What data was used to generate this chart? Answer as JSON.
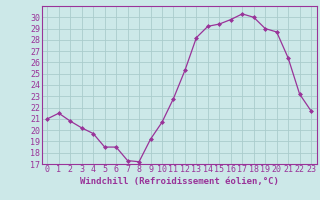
{
  "x": [
    0,
    1,
    2,
    3,
    4,
    5,
    6,
    7,
    8,
    9,
    10,
    11,
    12,
    13,
    14,
    15,
    16,
    17,
    18,
    19,
    20,
    21,
    22,
    23
  ],
  "y": [
    21.0,
    21.5,
    20.8,
    20.2,
    19.7,
    18.5,
    18.5,
    17.3,
    17.2,
    19.2,
    20.7,
    22.8,
    25.3,
    28.2,
    29.2,
    29.4,
    29.8,
    30.3,
    30.0,
    29.0,
    28.7,
    26.4,
    23.2,
    21.7
  ],
  "line_color": "#993399",
  "marker": "D",
  "marker_size": 2,
  "bg_color": "#cce8e8",
  "grid_color": "#aacccc",
  "xlabel": "Windchill (Refroidissement éolien,°C)",
  "xlim": [
    -0.5,
    23.5
  ],
  "ylim": [
    17,
    31
  ],
  "yticks": [
    17,
    18,
    19,
    20,
    21,
    22,
    23,
    24,
    25,
    26,
    27,
    28,
    29,
    30
  ],
  "xticks": [
    0,
    1,
    2,
    3,
    4,
    5,
    6,
    7,
    8,
    9,
    10,
    11,
    12,
    13,
    14,
    15,
    16,
    17,
    18,
    19,
    20,
    21,
    22,
    23
  ],
  "xlabel_fontsize": 6.5,
  "tick_fontsize": 6.0
}
